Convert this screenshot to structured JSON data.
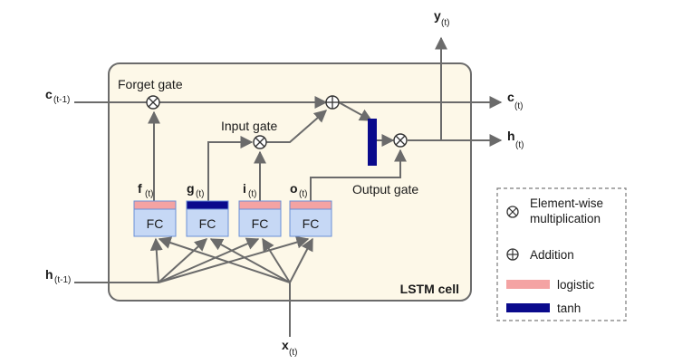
{
  "cell": {
    "title": "LSTM cell",
    "gate_labels": {
      "forget": "Forget gate",
      "input": "Input gate",
      "output": "Output gate"
    }
  },
  "inputs": {
    "c_prev": {
      "main": "c",
      "sub": "(t-1)"
    },
    "h_prev": {
      "main": "h",
      "sub": "(t-1)"
    },
    "x": {
      "main": "x",
      "sub": "(t)"
    }
  },
  "outputs": {
    "y": {
      "main": "y",
      "sub": "(t)"
    },
    "c": {
      "main": "c",
      "sub": "(t)"
    },
    "h": {
      "main": "h",
      "sub": "(t)"
    }
  },
  "layers": [
    {
      "name": "f",
      "sub": "(t)",
      "label": "FC",
      "activation": "logistic"
    },
    {
      "name": "g",
      "sub": "(t)",
      "label": "FC",
      "activation": "tanh"
    },
    {
      "name": "i",
      "sub": "(t)",
      "label": "FC",
      "activation": "logistic"
    },
    {
      "name": "o",
      "sub": "(t)",
      "label": "FC",
      "activation": "logistic"
    }
  ],
  "legend": {
    "multiply_line1": "Element-wise",
    "multiply_line2": "multiplication",
    "add": "Addition",
    "logistic": "logistic",
    "tanh": "tanh"
  },
  "colors": {
    "logistic": "#f4a3a3",
    "tanh": "#0a0a8c",
    "fc_fill": "#c6d8f5",
    "fc_border": "#6b8fd6",
    "cell_fill": "#fdf8e8",
    "wire": "#6b6b6b"
  }
}
